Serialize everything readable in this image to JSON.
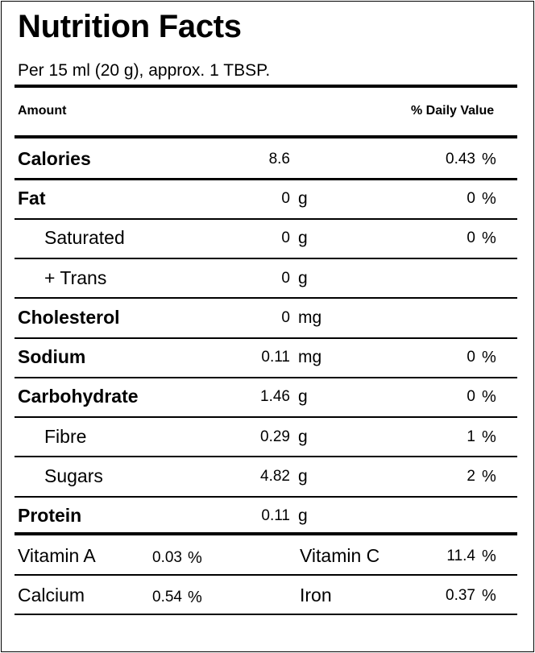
{
  "title": "Nutrition Facts",
  "serving": "Per 15 ml (20 g), approx. 1 TBSP.",
  "header": {
    "amount": "Amount",
    "daily_value": "% Daily Value"
  },
  "nutrients": [
    {
      "name": "Calories",
      "amount": "8.6",
      "unit": "",
      "dv": "0.43",
      "dv_symbol": "%"
    },
    {
      "name": "Fat",
      "amount": "0",
      "unit": "g",
      "dv": "0",
      "dv_symbol": "%"
    },
    {
      "name": "Saturated",
      "amount": "0",
      "unit": "g",
      "dv": "0",
      "dv_symbol": "%"
    },
    {
      "name": "+ Trans",
      "amount": "0",
      "unit": "g",
      "dv": "",
      "dv_symbol": ""
    },
    {
      "name": "Cholesterol",
      "amount": "0",
      "unit": "mg",
      "dv": "",
      "dv_symbol": ""
    },
    {
      "name": "Sodium",
      "amount": "0.11",
      "unit": "mg",
      "dv": "0",
      "dv_symbol": "%"
    },
    {
      "name": "Carbohydrate",
      "amount": "1.46",
      "unit": "g",
      "dv": "0",
      "dv_symbol": "%"
    },
    {
      "name": "Fibre",
      "amount": "0.29",
      "unit": "g",
      "dv": "1",
      "dv_symbol": "%"
    },
    {
      "name": "Sugars",
      "amount": "4.82",
      "unit": "g",
      "dv": "2",
      "dv_symbol": "%"
    },
    {
      "name": "Protein",
      "amount": "0.11",
      "unit": "g",
      "dv": "",
      "dv_symbol": ""
    }
  ],
  "vitamins": [
    {
      "left_name": "Vitamin A",
      "left_value": "0.03",
      "left_symbol": "%",
      "right_name": "Vitamin C",
      "right_value": "11.4",
      "right_symbol": "%"
    },
    {
      "left_name": "Calcium",
      "left_value": "0.54",
      "left_symbol": "%",
      "right_name": "Iron",
      "right_value": "0.37",
      "right_symbol": "%"
    }
  ]
}
